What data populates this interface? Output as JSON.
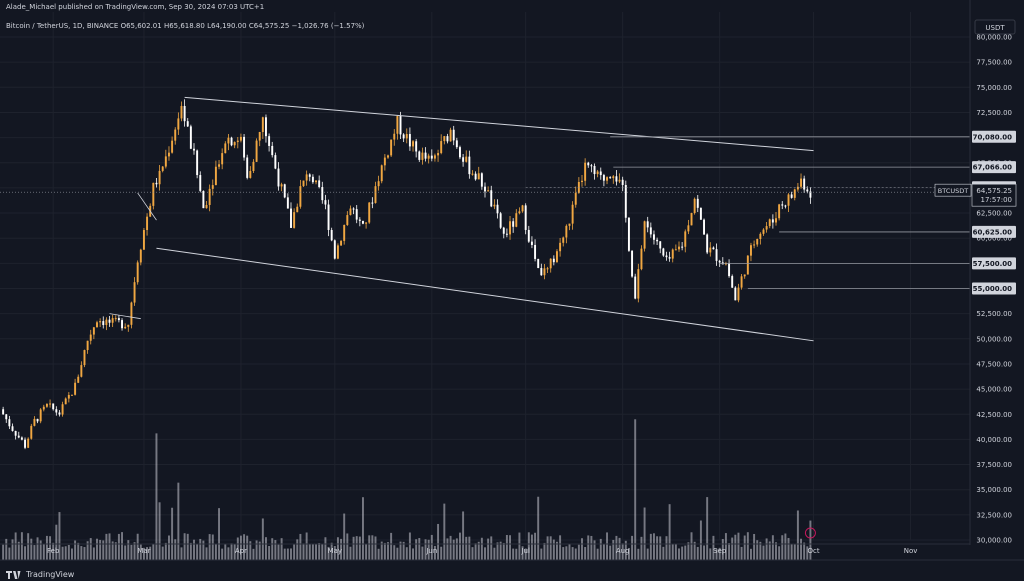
{
  "header": {
    "published": "Alade_Michael published on TradingView.com, Sep 30, 2024 07:03 UTC+1",
    "symbol": "Bitcoin / TetherUS, 1D, BINANCE",
    "ohlc": {
      "open": "O65,602.01",
      "high": "H65,618.80",
      "low": "L64,190.00",
      "close": "C64,575.25",
      "change": "−1,026.76 (−1.57%)"
    }
  },
  "currency_badge": "USDT",
  "brand": "TradingView",
  "colors": {
    "background": "#131722",
    "up": "#f0a742",
    "down": "#ffffff",
    "grid": "#1e222d",
    "text": "#d1d4dc",
    "trendline": "#d1d4dc"
  },
  "price_axis": {
    "ticks": [
      "80,000.00",
      "77,500.00",
      "75,000.00",
      "72,500.00",
      "67,500.00",
      "62,500.00",
      "60,000.00",
      "52,500.00",
      "50,000.00",
      "47,500.00",
      "45,000.00",
      "42,500.00",
      "40,000.00",
      "37,500.00",
      "35,000.00",
      "32,500.00",
      "30,000.00"
    ],
    "level_labels": [
      "70,080.00",
      "67,066.00",
      "65,065.59",
      "60,625.00",
      "57,500.00",
      "55,000.00"
    ],
    "current_price": {
      "symbol": "BTCUSDT",
      "price": "64,575.25",
      "countdown": "17:57:00"
    }
  },
  "time_axis": [
    "Feb",
    "Mar",
    "Apr",
    "May",
    "Jun",
    "Jul",
    "Aug",
    "Sep",
    "Oct",
    "Nov"
  ],
  "chart_data": {
    "type": "candlestick",
    "symbol": "BTCUSDT",
    "interval": "1D",
    "ylim": [
      30000,
      80000
    ],
    "x_range": [
      "2024-01-15",
      "2024-11-20"
    ],
    "grid": true,
    "price_levels": [
      70080,
      67066,
      65065.59,
      60625,
      57500,
      55000
    ],
    "current_price": 64575.25,
    "channel": {
      "upper": [
        [
          "2024-03-14",
          74000
        ],
        [
          "2024-10-01",
          68700
        ]
      ],
      "lower": [
        [
          "2024-03-05",
          59000
        ],
        [
          "2024-10-01",
          49800
        ]
      ]
    },
    "flag_lines": [
      [
        [
          "2024-02-19",
          52500
        ],
        [
          "2024-02-29",
          52000
        ]
      ],
      [
        [
          "2024-02-28",
          64500
        ],
        [
          "2024-03-05",
          61800
        ]
      ]
    ],
    "price_path": [
      [
        "2024-01-15",
        43000
      ],
      [
        "2024-01-18",
        41500
      ],
      [
        "2024-01-23",
        39400
      ],
      [
        "2024-01-26",
        41800
      ],
      [
        "2024-01-30",
        43300
      ],
      [
        "2024-02-03",
        42600
      ],
      [
        "2024-02-08",
        45300
      ],
      [
        "2024-02-12",
        49900
      ],
      [
        "2024-02-15",
        52000
      ],
      [
        "2024-02-20",
        51500
      ],
      [
        "2024-02-25",
        51600
      ],
      [
        "2024-02-28",
        58000
      ],
      [
        "2024-03-04",
        65000
      ],
      [
        "2024-03-08",
        68000
      ],
      [
        "2024-03-13",
        73100
      ],
      [
        "2024-03-17",
        68000
      ],
      [
        "2024-03-20",
        63000
      ],
      [
        "2024-03-22",
        65000
      ],
      [
        "2024-03-27",
        70000
      ],
      [
        "2024-04-01",
        69700
      ],
      [
        "2024-04-03",
        66000
      ],
      [
        "2024-04-08",
        71600
      ],
      [
        "2024-04-12",
        67000
      ],
      [
        "2024-04-17",
        61300
      ],
      [
        "2024-04-20",
        64900
      ],
      [
        "2024-04-23",
        66500
      ],
      [
        "2024-04-28",
        63000
      ],
      [
        "2024-05-01",
        58300
      ],
      [
        "2024-05-06",
        63300
      ],
      [
        "2024-05-10",
        60800
      ],
      [
        "2024-05-15",
        66200
      ],
      [
        "2024-05-21",
        71400
      ],
      [
        "2024-05-27",
        68500
      ],
      [
        "2024-06-01",
        67500
      ],
      [
        "2024-06-07",
        70800
      ],
      [
        "2024-06-12",
        67400
      ],
      [
        "2024-06-18",
        65100
      ],
      [
        "2024-06-24",
        60300
      ],
      [
        "2024-06-30",
        62700
      ],
      [
        "2024-07-05",
        56600
      ],
      [
        "2024-07-08",
        56700
      ],
      [
        "2024-07-14",
        60800
      ],
      [
        "2024-07-20",
        67100
      ],
      [
        "2024-07-25",
        65800
      ],
      [
        "2024-07-29",
        66800
      ],
      [
        "2024-08-01",
        64600
      ],
      [
        "2024-08-05",
        54000
      ],
      [
        "2024-08-08",
        61700
      ],
      [
        "2024-08-15",
        57500
      ],
      [
        "2024-08-20",
        59400
      ],
      [
        "2024-08-24",
        64100
      ],
      [
        "2024-08-28",
        59000
      ],
      [
        "2024-09-03",
        57500
      ],
      [
        "2024-09-06",
        53900
      ],
      [
        "2024-09-09",
        57000
      ],
      [
        "2024-09-13",
        60500
      ],
      [
        "2024-09-18",
        61700
      ],
      [
        "2024-09-20",
        63200
      ],
      [
        "2024-09-24",
        64200
      ],
      [
        "2024-09-27",
        65800
      ],
      [
        "2024-09-30",
        64575
      ]
    ],
    "volume_scale": {
      "bottom_price": 28000,
      "top_price": 42000,
      "max_volume": 1.0
    },
    "volume_spikes": {
      "2024-03-05": 0.9,
      "2024-08-05": 1.0,
      "2024-07-05": 0.45,
      "2024-01-12": 0.35,
      "2024-03-12": 0.55
    }
  }
}
